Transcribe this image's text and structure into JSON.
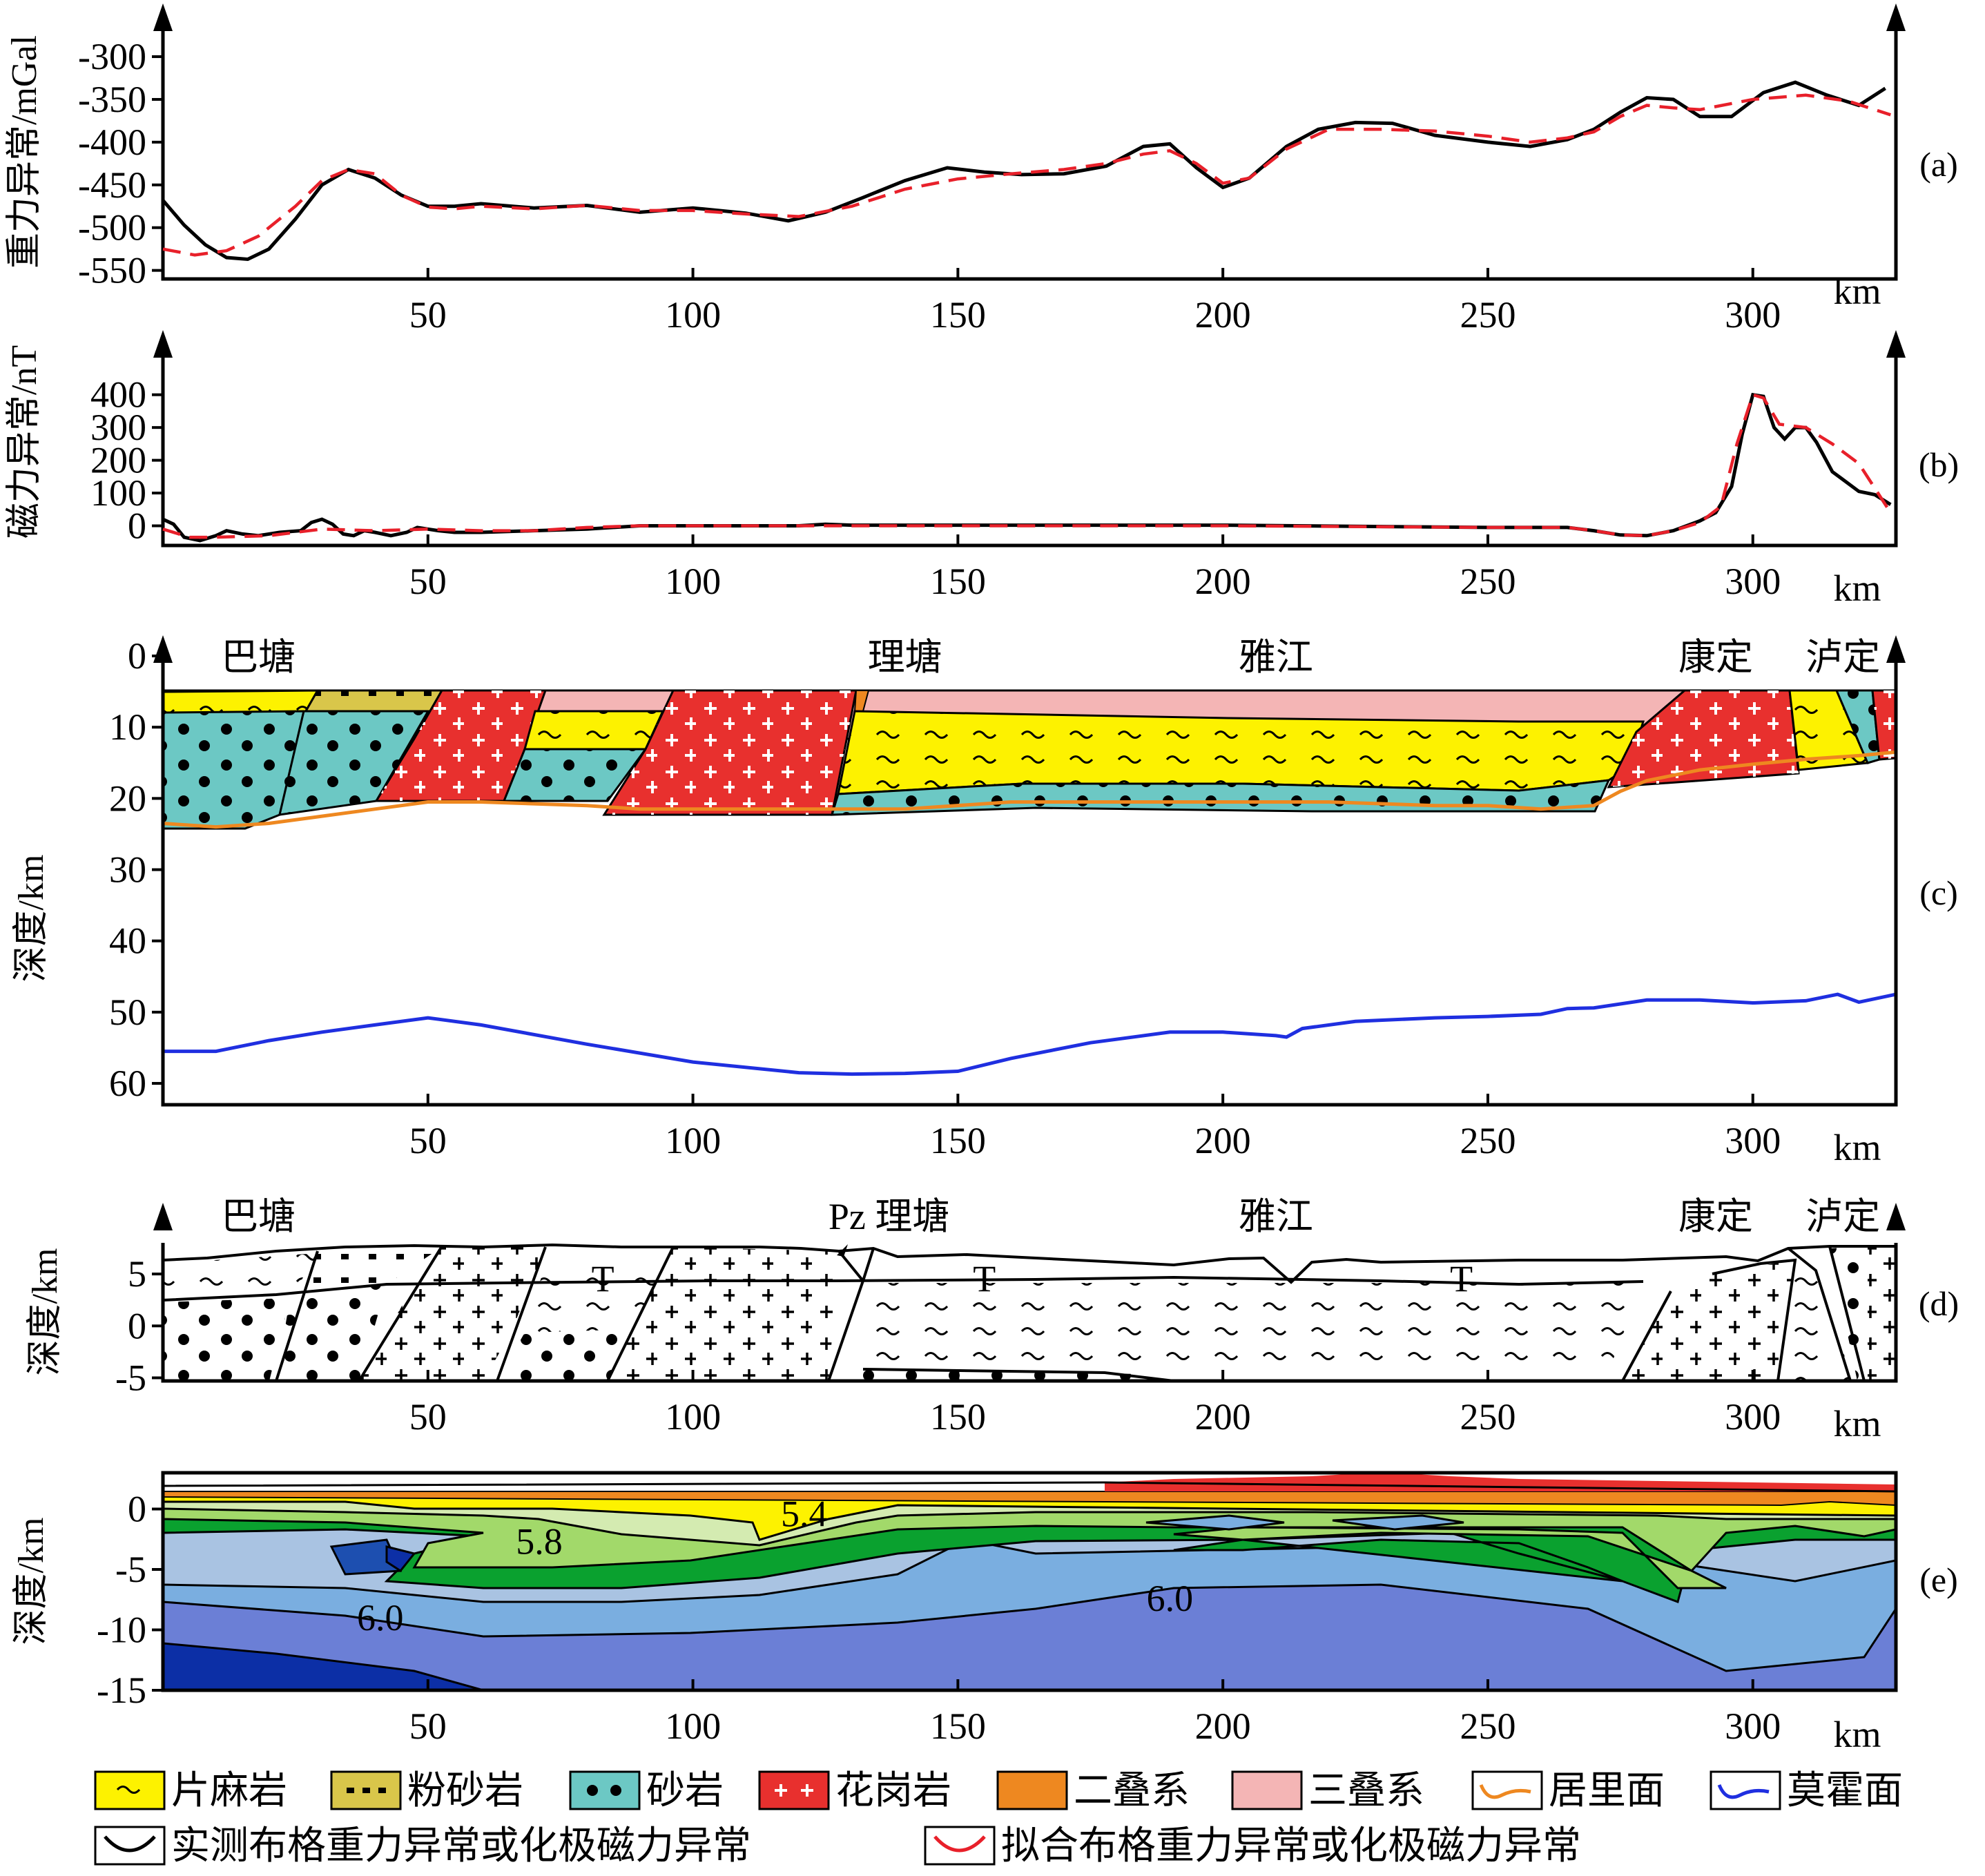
{
  "colors": {
    "gneiss": "#fdf200",
    "siltstone": "#d9c64a",
    "sandstone": "#6cc8c4",
    "granite": "#e8302e",
    "permian": "#ee8820",
    "triassic": "#f4b5b5",
    "conrad": "#ee8820",
    "moho": "#1f2fe0",
    "observed": "#000000",
    "fitted": "#e8202a"
  },
  "km_unit": "km",
  "chart_data": [
    {
      "id": "a",
      "type": "line",
      "panel_label": "(a)",
      "ylabel": "重力异常/mGal",
      "xlabel": "km",
      "xlim": [
        0,
        327
      ],
      "ylim": [
        -560,
        -262
      ],
      "xticks": [
        50,
        100,
        150,
        200,
        250,
        300
      ],
      "yticks": [
        -300,
        -350,
        -400,
        -450,
        -500,
        -550
      ],
      "series": [
        {
          "name": "实测布格重力异常或化极磁力异常",
          "style": "solid",
          "x": [
            0,
            4,
            8,
            12,
            16,
            20,
            25,
            30,
            35,
            40,
            45,
            50,
            55,
            60,
            70,
            80,
            90,
            100,
            110,
            118,
            125,
            132,
            140,
            148,
            155,
            162,
            170,
            178,
            185,
            190,
            195,
            200,
            205,
            212,
            218,
            225,
            232,
            240,
            250,
            258,
            265,
            270,
            275,
            280,
            285,
            290,
            296,
            302,
            308,
            314,
            320,
            325
          ],
          "y": [
            -468,
            -497,
            -520,
            -535,
            -537,
            -525,
            -490,
            -450,
            -432,
            -442,
            -462,
            -475,
            -475,
            -472,
            -477,
            -474,
            -482,
            -477,
            -483,
            -492,
            -482,
            -465,
            -445,
            -430,
            -435,
            -438,
            -437,
            -428,
            -405,
            -402,
            -430,
            -453,
            -442,
            -405,
            -385,
            -377,
            -378,
            -392,
            -400,
            -405,
            -397,
            -385,
            -365,
            -348,
            -350,
            -370,
            -370,
            -342,
            -330,
            -345,
            -357,
            -337
          ]
        },
        {
          "name": "拟合布格重力异常或化极磁力异常",
          "style": "dashed",
          "x": [
            0,
            6,
            12,
            18,
            25,
            30,
            35,
            40,
            45,
            50,
            55,
            60,
            70,
            80,
            90,
            100,
            110,
            120,
            130,
            140,
            150,
            160,
            170,
            178,
            185,
            190,
            195,
            200,
            205,
            212,
            220,
            230,
            240,
            250,
            258,
            265,
            270,
            275,
            280,
            285,
            290,
            300,
            310,
            318,
            326
          ],
          "y": [
            -525,
            -532,
            -527,
            -510,
            -475,
            -445,
            -432,
            -437,
            -462,
            -476,
            -478,
            -475,
            -478,
            -474,
            -480,
            -480,
            -484,
            -487,
            -475,
            -455,
            -443,
            -437,
            -432,
            -425,
            -414,
            -410,
            -425,
            -448,
            -442,
            -408,
            -385,
            -385,
            -387,
            -393,
            -400,
            -395,
            -388,
            -370,
            -357,
            -360,
            -362,
            -350,
            -345,
            -352,
            -368
          ]
        }
      ]
    },
    {
      "id": "b",
      "type": "line",
      "panel_label": "(b)",
      "ylabel": "磁力异常/nT",
      "xlabel": "km",
      "xlim": [
        0,
        327
      ],
      "ylim": [
        -60,
        530
      ],
      "xticks": [
        50,
        100,
        150,
        200,
        250,
        300
      ],
      "yticks": [
        400,
        300,
        200,
        100,
        0
      ],
      "series": [
        {
          "name": "实测布格重力异常或化极磁力异常",
          "style": "solid",
          "x": [
            0,
            2,
            4,
            7,
            10,
            12,
            15,
            18,
            22,
            26,
            28,
            30,
            32,
            34,
            36,
            38,
            40,
            43,
            46,
            48,
            50,
            52,
            55,
            60,
            70,
            80,
            90,
            100,
            110,
            120,
            125,
            130,
            150,
            200,
            250,
            265,
            270,
            275,
            280,
            285,
            290,
            293,
            296,
            298,
            300,
            302,
            304,
            306,
            308,
            310,
            312,
            315,
            320,
            323,
            326
          ],
          "y": [
            20,
            5,
            -35,
            -45,
            -30,
            -15,
            -25,
            -30,
            -20,
            -15,
            10,
            20,
            5,
            -25,
            -30,
            -15,
            -20,
            -30,
            -20,
            -5,
            -10,
            -15,
            -20,
            -20,
            -15,
            -10,
            0,
            0,
            0,
            0,
            5,
            2,
            2,
            2,
            -5,
            -5,
            -15,
            -28,
            -30,
            -15,
            15,
            40,
            120,
            280,
            400,
            395,
            300,
            265,
            300,
            300,
            255,
            165,
            105,
            95,
            65
          ]
        },
        {
          "name": "拟合布格重力异常或化极磁力异常",
          "style": "dashed",
          "x": [
            0,
            5,
            10,
            20,
            30,
            40,
            50,
            60,
            70,
            80,
            90,
            100,
            125,
            150,
            200,
            250,
            265,
            270,
            275,
            280,
            285,
            290,
            294,
            297,
            300,
            302,
            305,
            310,
            315,
            320,
            326
          ],
          "y": [
            -10,
            -35,
            -35,
            -30,
            -10,
            -15,
            -10,
            -15,
            -15,
            -5,
            0,
            0,
            0,
            0,
            0,
            -5,
            -5,
            -15,
            -28,
            -30,
            -15,
            10,
            60,
            250,
            400,
            390,
            310,
            300,
            250,
            190,
            40
          ]
        }
      ]
    },
    {
      "id": "c",
      "type": "area",
      "panel_label": "(c)",
      "ylabel": "深度/km",
      "xlabel": "km",
      "xlim": [
        0,
        327
      ],
      "ylim": [
        0,
        63
      ],
      "xticks": [
        50,
        100,
        150,
        200,
        250,
        300
      ],
      "yticks": [
        0,
        10,
        20,
        30,
        40,
        50,
        60
      ],
      "places": [
        {
          "name": "巴塘",
          "x": 18
        },
        {
          "name": "理塘",
          "x": 140
        },
        {
          "name": "雅江",
          "x": 210
        },
        {
          "name": "康定",
          "x": 293
        },
        {
          "name": "泸定",
          "x": 317
        }
      ],
      "moho": {
        "name": "莫霍面",
        "x": [
          0,
          10,
          20,
          30,
          40,
          50,
          60,
          80,
          100,
          120,
          130,
          140,
          150,
          160,
          175,
          190,
          200,
          210,
          212,
          215,
          225,
          240,
          250,
          260,
          265,
          270,
          280,
          290,
          300,
          310,
          316,
          320,
          327
        ],
        "y": [
          55.5,
          55.5,
          54,
          52.8,
          51.8,
          50.8,
          51.8,
          54.5,
          57,
          58.5,
          58.7,
          58.6,
          58.3,
          56.5,
          54.3,
          52.8,
          52.8,
          53.3,
          53.5,
          52.3,
          51.3,
          50.8,
          50.6,
          50.3,
          49.5,
          49.4,
          48.3,
          48.3,
          48.7,
          48.4,
          47.5,
          48.6,
          47.5
        ]
      },
      "conrad": {
        "name": "居里面",
        "x": [
          0,
          10,
          20,
          30,
          40,
          50,
          60,
          80,
          90,
          100,
          120,
          130,
          140,
          160,
          180,
          200,
          220,
          240,
          250,
          260,
          270,
          275,
          280,
          290,
          300,
          310,
          320,
          327
        ],
        "y": [
          23.5,
          24,
          23.5,
          22.5,
          21.5,
          20.5,
          20.5,
          21,
          21.5,
          21.5,
          21.5,
          21.5,
          21.5,
          20.5,
          20.5,
          20.5,
          20.5,
          21,
          21,
          21.5,
          21,
          19,
          17.5,
          16,
          15.2,
          14.5,
          14,
          13.5
        ]
      }
    },
    {
      "id": "d",
      "type": "area",
      "panel_label": "(d)",
      "ylabel": "深度/km",
      "xlabel": "km",
      "xlim": [
        0,
        327
      ],
      "ylim": [
        -5.3,
        8
      ],
      "xticks": [
        50,
        100,
        150,
        200,
        250,
        300
      ],
      "yticks": [
        5,
        0,
        -5
      ],
      "places": [
        {
          "name": "巴塘",
          "x": 18
        },
        {
          "name": "Pz 理塘",
          "x": 137
        },
        {
          "name": "雅江",
          "x": 210
        },
        {
          "name": "康定",
          "x": 293
        },
        {
          "name": "泸定",
          "x": 317
        }
      ],
      "unit_labels": [
        {
          "text": "T",
          "x": 83
        },
        {
          "text": "T",
          "x": 155
        },
        {
          "text": "T",
          "x": 245
        }
      ]
    },
    {
      "id": "e",
      "type": "heatmap",
      "panel_label": "(e)",
      "ylabel": "深度/km",
      "xlabel": "km",
      "xlim": [
        0,
        327
      ],
      "ylim": [
        -15,
        3
      ],
      "xticks": [
        50,
        100,
        150,
        200,
        250,
        300
      ],
      "yticks": [
        0,
        -5,
        -10,
        -15
      ],
      "contour_labels": [
        {
          "text": "5.4",
          "x": 121,
          "y": -0.5
        },
        {
          "text": "5.8",
          "x": 71,
          "y": -2.8
        },
        {
          "text": "6.0",
          "x": 41,
          "y": -9.1
        },
        {
          "text": "6.0",
          "x": 190,
          "y": -7.5
        }
      ]
    }
  ],
  "legend": [
    {
      "label": "片麻岩",
      "key": "gneiss"
    },
    {
      "label": "粉砂岩",
      "key": "siltstone"
    },
    {
      "label": "砂岩",
      "key": "sandstone"
    },
    {
      "label": "花岗岩",
      "key": "granite"
    },
    {
      "label": "二叠系",
      "key": "permian"
    },
    {
      "label": "三叠系",
      "key": "triassic"
    },
    {
      "label": "居里面",
      "key": "conrad"
    },
    {
      "label": "莫霍面",
      "key": "moho"
    },
    {
      "label": "实测布格重力异常或化极磁力异常",
      "key": "observed"
    },
    {
      "label": "拟合布格重力异常或化极磁力异常",
      "key": "fitted"
    }
  ]
}
